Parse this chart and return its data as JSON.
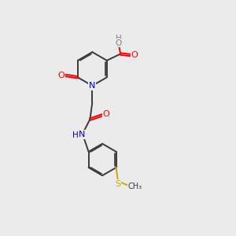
{
  "bg_color": "#ebebeb",
  "bond_color": "#3a3a3a",
  "atom_colors": {
    "O": "#ff0000",
    "N": "#0000cc",
    "S": "#ccaa00",
    "C": "#3a3a3a",
    "H": "#808080"
  },
  "lw": 1.4,
  "dbo": 0.048
}
